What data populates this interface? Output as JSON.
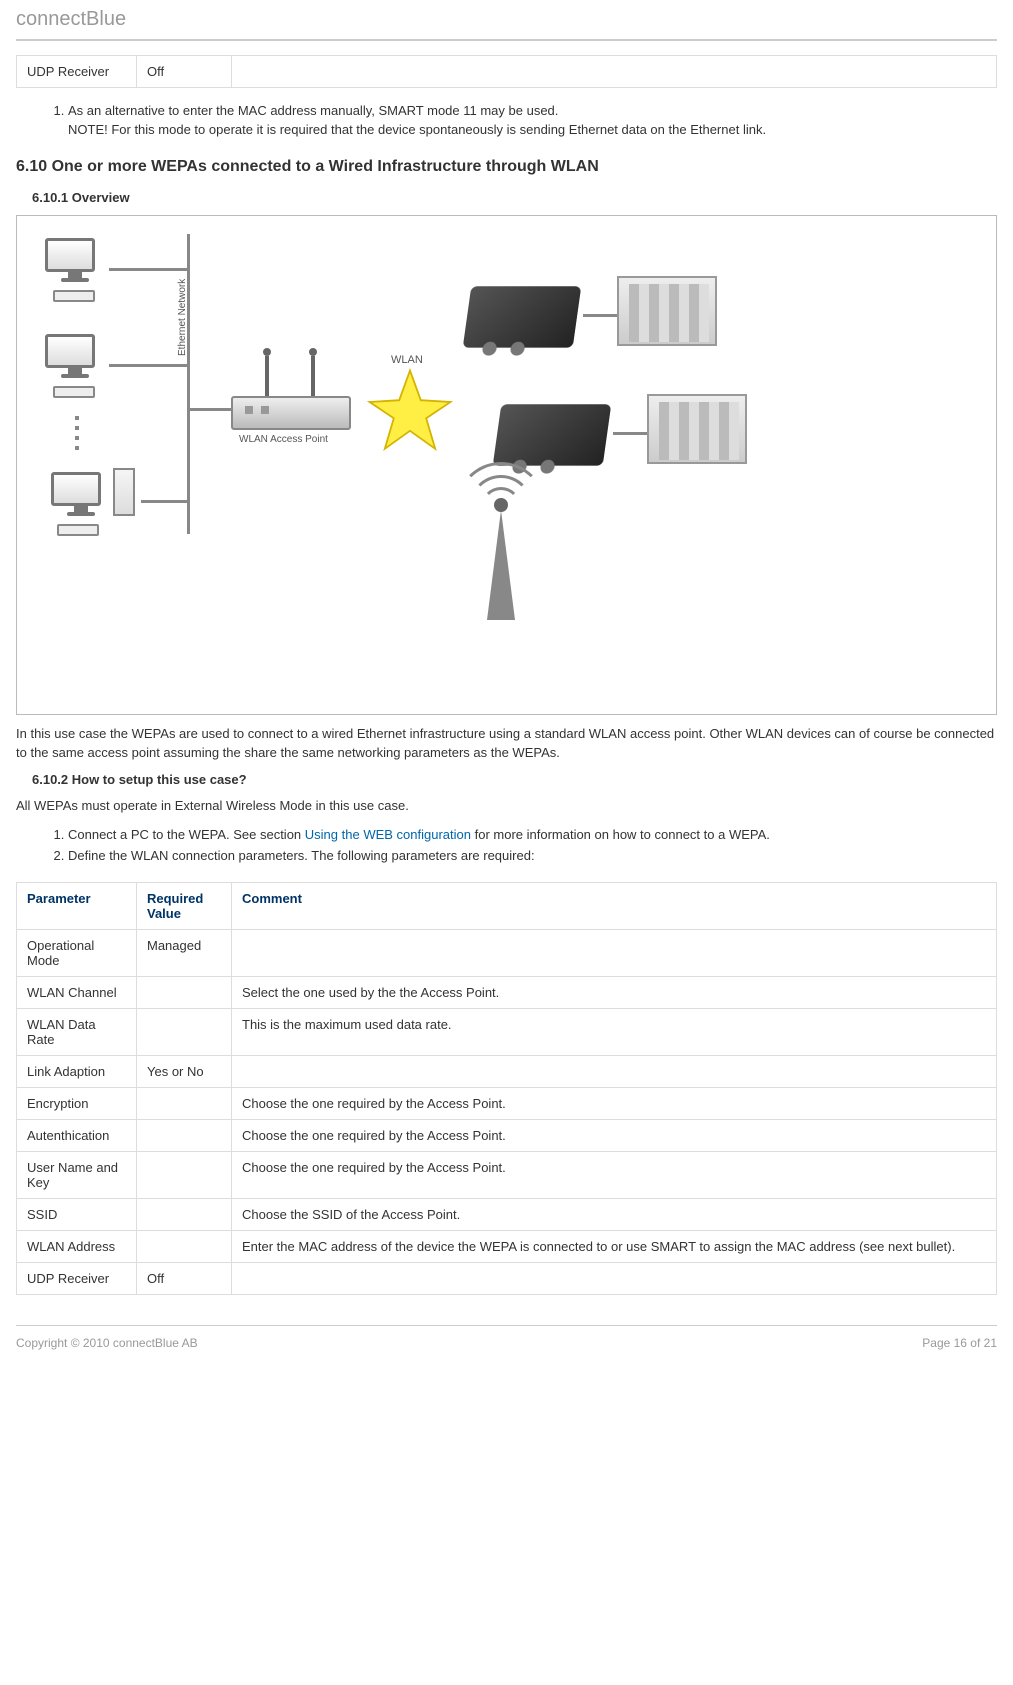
{
  "header": {
    "brand": "connectBlue"
  },
  "top_table": {
    "rows": [
      {
        "param": "UDP Receiver",
        "required": "Off",
        "comment": ""
      }
    ]
  },
  "note_list_top": {
    "items": [
      "As an alternative to enter the MAC address manually, SMART mode 11 may be used.\nNOTE! For this mode to operate it is required that the device spontaneously is sending Ethernet data on the Ethernet link."
    ]
  },
  "section": {
    "heading": "6.10 One or more WEPAs connected to a Wired Infrastructure through WLAN",
    "overview_heading": "6.10.1 Overview",
    "diagram_labels": {
      "ethernet_network": "Ethernet Network",
      "wlan_ap": "WLAN Access Point",
      "wlan": "WLAN"
    },
    "overview_para": "In this use case the WEPAs are used to connect to a wired Ethernet infrastructure using a standard WLAN access point. Other WLAN devices can of course be connected to the same access point assuming the share the same networking parameters as the WEPAs.",
    "setup_heading": "6.10.2 How to setup this use case?",
    "setup_intro": "All WEPAs must operate in External Wireless Mode in this use case.",
    "setup_steps": {
      "step1_pre": "Connect a PC to the WEPA. See section ",
      "step1_link": "Using the WEB configuration",
      "step1_post": " for more information on how to connect to a WEPA.",
      "step2": "Define the WLAN connection parameters. The following parameters are required:"
    }
  },
  "params_table": {
    "headers": {
      "param": "Parameter",
      "required": "Required Value",
      "comment": "Comment"
    },
    "rows": [
      {
        "param": "Operational Mode",
        "required": "Managed",
        "comment": ""
      },
      {
        "param": "WLAN Channel",
        "required": "",
        "comment": "Select the one used by the the Access Point."
      },
      {
        "param": "WLAN Data Rate",
        "required": "",
        "comment": "This is the maximum used data rate."
      },
      {
        "param": "Link Adaption",
        "required": "Yes or No",
        "comment": ""
      },
      {
        "param": "Encryption",
        "required": "",
        "comment": "Choose the one required by the Access Point."
      },
      {
        "param": "Autenthication",
        "required": "",
        "comment": "Choose the one required by the Access Point."
      },
      {
        "param": "User Name and Key",
        "required": "",
        "comment": "Choose the one required by the Access Point."
      },
      {
        "param": "SSID",
        "required": "",
        "comment": "Choose the SSID of the Access Point."
      },
      {
        "param": "WLAN Address",
        "required": "",
        "comment": "Enter the MAC address of the device the WEPA is connected to or use SMART to assign the MAC address (see next bullet)."
      },
      {
        "param": "UDP Receiver",
        "required": "Off",
        "comment": ""
      }
    ]
  },
  "footer": {
    "copyright": "Copyright © 2010 connectBlue AB",
    "page": "Page 16 of 21"
  },
  "styling": {
    "brand_color": "#999999",
    "header_color": "#003366",
    "border_color": "#dddddd",
    "link_color": "#0066aa",
    "body_font_size": 13,
    "heading_font_size": 16
  }
}
